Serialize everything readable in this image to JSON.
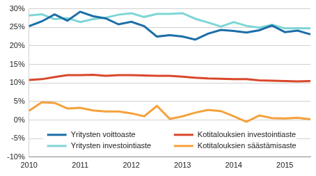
{
  "chart_data": {
    "type": "line",
    "categories": [
      "2010",
      null,
      null,
      null,
      "2011",
      null,
      null,
      null,
      "2012",
      null,
      null,
      null,
      "2013",
      null,
      null,
      null,
      "2014",
      null,
      null,
      null,
      "2015",
      null,
      null
    ],
    "series": [
      {
        "name": "Yritysten voittoaste",
        "color": "#1b6ea7",
        "values": [
          25.3,
          26.6,
          28.5,
          26.8,
          29.2,
          28.0,
          27.4,
          25.8,
          26.5,
          25.3,
          22.5,
          22.9,
          22.5,
          21.7,
          23.3,
          24.3,
          24.0,
          23.6,
          24.2,
          25.5,
          23.7,
          24.1,
          23.1
        ]
      },
      {
        "name": "Yritysten investointiaste",
        "color": "#7ed6d6",
        "values": [
          28.2,
          28.5,
          27.2,
          27.5,
          26.4,
          27.2,
          27.6,
          28.4,
          28.8,
          27.8,
          28.6,
          28.6,
          28.8,
          27.3,
          26.3,
          25.2,
          26.4,
          25.4,
          24.9,
          25.7,
          24.7,
          24.7,
          24.7
        ]
      },
      {
        "name": "Kotitalouksien investointiaste",
        "color": "#d9472b",
        "values": [
          10.8,
          11.0,
          11.6,
          12.1,
          12.1,
          12.2,
          11.9,
          12.1,
          12.1,
          12.0,
          11.9,
          11.9,
          11.7,
          11.4,
          11.2,
          11.1,
          11.0,
          11.0,
          10.7,
          10.6,
          10.5,
          10.4,
          10.5
        ]
      },
      {
        "name": "Kotitalouksien säästämisaste",
        "color": "#f5a13a",
        "values": [
          2.5,
          4.8,
          4.6,
          3.1,
          3.3,
          2.6,
          2.3,
          2.3,
          1.8,
          1.0,
          3.8,
          0.3,
          1.0,
          2.0,
          2.7,
          2.4,
          1.0,
          -0.5,
          1.2,
          0.5,
          0.4,
          0.6,
          0.2
        ]
      }
    ],
    "ylim": [
      -10,
      30
    ],
    "yticks": [
      {
        "value": -10,
        "label": "-10%"
      },
      {
        "value": -5,
        "label": "-5%"
      },
      {
        "value": 0,
        "label": "0%"
      },
      {
        "value": 5,
        "label": "5%"
      },
      {
        "value": 10,
        "label": "10%"
      },
      {
        "value": 15,
        "label": "15%"
      },
      {
        "value": 20,
        "label": "20%"
      },
      {
        "value": 25,
        "label": "25%"
      },
      {
        "value": 30,
        "label": "30%"
      }
    ],
    "grid": true,
    "legend": "bottom"
  }
}
